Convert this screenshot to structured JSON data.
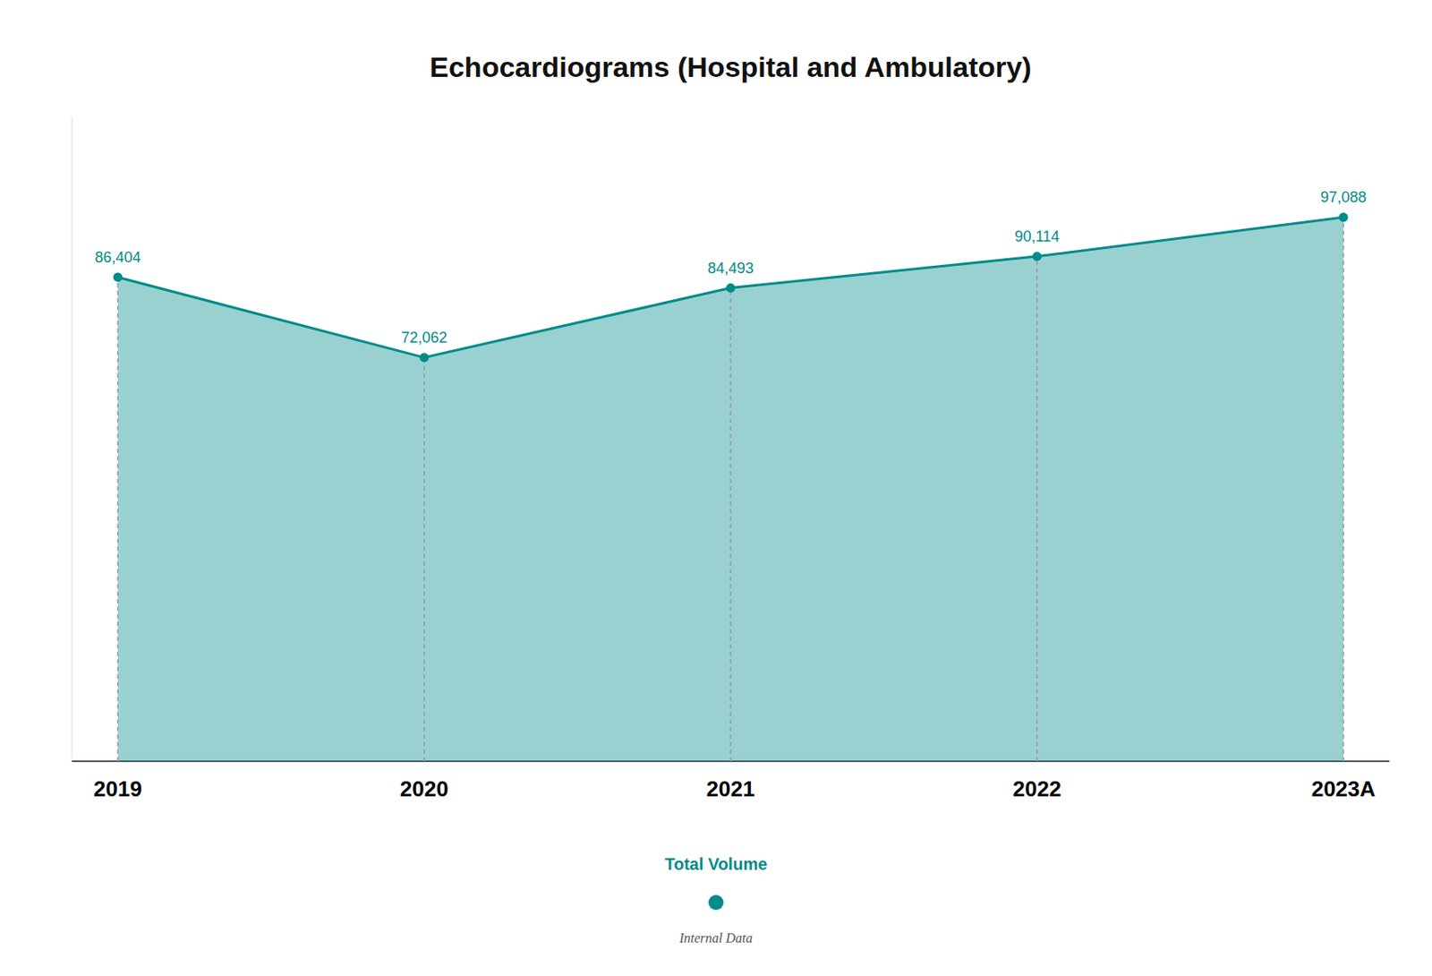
{
  "chart_data": {
    "type": "area",
    "title": "Echocardiograms (Hospital and Ambulatory)",
    "categories": [
      "2019",
      "2020",
      "2021",
      "2022",
      "2023A"
    ],
    "series": [
      {
        "name": "Total Volume",
        "color": "#008B8B",
        "marker": "circle",
        "values": [
          86404,
          72062,
          84493,
          90114,
          97088
        ],
        "value_labels": [
          "86,404",
          "72,062",
          "84,493",
          "90,114",
          "97,088"
        ]
      }
    ],
    "ylim": [
      0,
      115000
    ],
    "grid": false,
    "data_labels": true,
    "tick_labels": "x",
    "legend": "bottom",
    "annotation": "Internal Data"
  }
}
